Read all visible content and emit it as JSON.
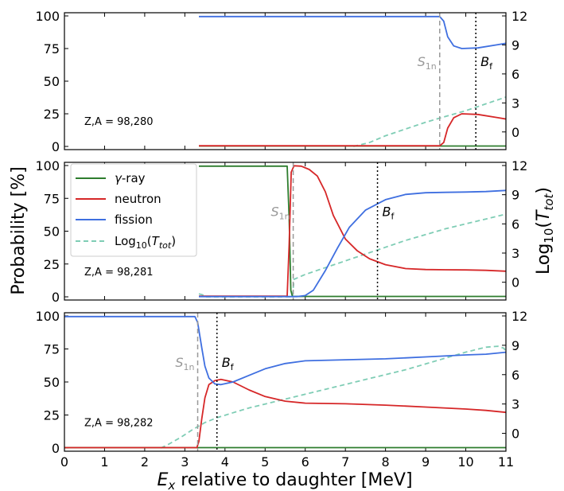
{
  "chart_data": {
    "type": "line",
    "xlabel": "E",
    "xlabel_sub": "x",
    "xlabel_rest": " relative to daughter [MeV]",
    "ylabel": "Probability [%]",
    "y2label": "Log",
    "y2label_sub": "10",
    "y2label_open": "(",
    "y2label_var": "T",
    "y2label_var_sub": "tot",
    "y2label_close": ")",
    "xlim": [
      0,
      11
    ],
    "ylim": [
      0,
      100
    ],
    "y2lim": [
      -1.5,
      12
    ],
    "xticks": [
      0,
      1,
      2,
      3,
      4,
      5,
      6,
      7,
      8,
      9,
      10,
      11
    ],
    "yticks": [
      0,
      25,
      50,
      75,
      100
    ],
    "y2ticks": [
      0,
      3,
      6,
      9,
      12
    ],
    "colors": {
      "gamma": "#2e7d2e",
      "neutron": "#d62728",
      "fission": "#3f6fe0",
      "log": "#7fcdb5",
      "s1n": "#999999",
      "bf": "#000000"
    },
    "legend": {
      "placement": "upper-left of middle panel",
      "entries": [
        {
          "key": "gamma",
          "label_symbol": "γ",
          "label_rest": "-ray"
        },
        {
          "key": "neutron",
          "label": "neutron"
        },
        {
          "key": "fission",
          "label": "fission"
        },
        {
          "key": "log",
          "label_pre": "Log",
          "label_sub": "10",
          "label_open": "(",
          "label_var": "T",
          "label_var_sub": "tot",
          "label_close": ")"
        }
      ]
    },
    "marker_labels": {
      "s1n_main": "S",
      "s1n_sub": "1n",
      "bf_main": "B",
      "bf_sub": "f"
    },
    "panels": [
      {
        "label": "Z,A = 98,280",
        "s1n": 9.35,
        "bf": 10.25,
        "s1n_label_pos": "left",
        "series": {
          "gamma": [
            [
              3.35,
              0.3
            ],
            [
              11,
              0.3
            ]
          ],
          "neutron": [
            [
              3.35,
              0.5
            ],
            [
              9.35,
              0.5
            ],
            [
              9.45,
              3
            ],
            [
              9.55,
              14
            ],
            [
              9.7,
              22
            ],
            [
              9.9,
              25
            ],
            [
              10.3,
              24.5
            ],
            [
              10.8,
              22
            ],
            [
              11,
              21
            ]
          ],
          "fission": [
            [
              3.35,
              99.5
            ],
            [
              9.35,
              99.5
            ],
            [
              9.45,
              96
            ],
            [
              9.55,
              84
            ],
            [
              9.7,
              77
            ],
            [
              9.9,
              75
            ],
            [
              10.3,
              75.5
            ],
            [
              10.8,
              78
            ],
            [
              11,
              79
            ]
          ],
          "log": [
            [
              7.2,
              -1.5
            ],
            [
              7.6,
              -1.1
            ],
            [
              8.0,
              -0.4
            ],
            [
              8.5,
              0.3
            ],
            [
              9.0,
              1.0
            ],
            [
              9.5,
              1.6
            ],
            [
              10.0,
              2.2
            ],
            [
              10.5,
              2.9
            ],
            [
              11,
              3.6
            ]
          ]
        }
      },
      {
        "label": "Z,A = 98,281",
        "s1n": 5.7,
        "bf": 7.8,
        "s1n_label_pos": "left",
        "series": {
          "gamma": [
            [
              3.35,
              99.5
            ],
            [
              5.55,
              99.5
            ],
            [
              5.6,
              60
            ],
            [
              5.64,
              5
            ],
            [
              5.68,
              0.3
            ],
            [
              11,
              0.3
            ]
          ],
          "neutron": [
            [
              3.35,
              0.5
            ],
            [
              5.55,
              0.5
            ],
            [
              5.6,
              40
            ],
            [
              5.65,
              95
            ],
            [
              5.72,
              99.8
            ],
            [
              5.9,
              99.5
            ],
            [
              6.1,
              97
            ],
            [
              6.3,
              92
            ],
            [
              6.5,
              80
            ],
            [
              6.7,
              62
            ],
            [
              7.0,
              44
            ],
            [
              7.3,
              35
            ],
            [
              7.6,
              29
            ],
            [
              8.0,
              24.5
            ],
            [
              8.5,
              21.5
            ],
            [
              9.0,
              20.8
            ],
            [
              9.5,
              20.6
            ],
            [
              10.0,
              20.5
            ],
            [
              10.5,
              20.2
            ],
            [
              11,
              19.5
            ]
          ],
          "fission": [
            [
              3.35,
              0.2
            ],
            [
              5.8,
              0.2
            ],
            [
              6.0,
              1
            ],
            [
              6.2,
              5
            ],
            [
              6.5,
              20
            ],
            [
              6.8,
              37
            ],
            [
              7.1,
              53
            ],
            [
              7.5,
              66
            ],
            [
              8.0,
              74
            ],
            [
              8.5,
              78
            ],
            [
              9.0,
              79.3
            ],
            [
              9.5,
              79.6
            ],
            [
              10.0,
              79.8
            ],
            [
              10.5,
              80.2
            ],
            [
              11,
              81
            ]
          ],
          "log": [
            [
              3.35,
              -1.2
            ],
            [
              3.45,
              -1.3
            ],
            [
              3.5,
              -1.5
            ],
            [
              5.68,
              -1.5
            ],
            [
              5.72,
              0.3
            ],
            [
              6.0,
              0.8
            ],
            [
              6.5,
              1.5
            ],
            [
              7.0,
              2.2
            ],
            [
              7.5,
              2.9
            ],
            [
              8.0,
              3.6
            ],
            [
              8.5,
              4.3
            ],
            [
              9.0,
              4.9
            ],
            [
              9.5,
              5.5
            ],
            [
              10.0,
              6.0
            ],
            [
              10.5,
              6.5
            ],
            [
              11,
              7.0
            ]
          ]
        }
      },
      {
        "label": "Z,A = 98,282",
        "s1n": 3.32,
        "bf": 3.8,
        "s1n_label_pos": "left",
        "series": {
          "gamma": [
            [
              0,
              0.3
            ],
            [
              11,
              0.3
            ]
          ],
          "neutron": [
            [
              0,
              0.3
            ],
            [
              3.3,
              0.3
            ],
            [
              3.35,
              5
            ],
            [
              3.42,
              22
            ],
            [
              3.5,
              38
            ],
            [
              3.6,
              48
            ],
            [
              3.75,
              51
            ],
            [
              3.9,
              52
            ],
            [
              4.2,
              50
            ],
            [
              4.6,
              44
            ],
            [
              5.0,
              39
            ],
            [
              5.5,
              35.5
            ],
            [
              6.0,
              34
            ],
            [
              7.0,
              33.5
            ],
            [
              8.0,
              32.5
            ],
            [
              9.0,
              31
            ],
            [
              10.0,
              29.5
            ],
            [
              10.5,
              28.5
            ],
            [
              11,
              27
            ]
          ],
          "fission": [
            [
              0,
              99.5
            ],
            [
              3.25,
              99.5
            ],
            [
              3.32,
              95
            ],
            [
              3.42,
              76
            ],
            [
              3.5,
              62
            ],
            [
              3.6,
              53
            ],
            [
              3.75,
              48.5
            ],
            [
              3.9,
              48
            ],
            [
              4.2,
              50
            ],
            [
              4.6,
              55
            ],
            [
              5.0,
              60
            ],
            [
              5.5,
              64
            ],
            [
              6.0,
              66
            ],
            [
              7.0,
              66.8
            ],
            [
              8.0,
              67.5
            ],
            [
              9.0,
              69
            ],
            [
              10.0,
              70.5
            ],
            [
              10.5,
              71
            ],
            [
              11,
              72.5
            ]
          ],
          "log": [
            [
              2.4,
              -1.5
            ],
            [
              2.6,
              -1.1
            ],
            [
              2.9,
              -0.4
            ],
            [
              3.2,
              0.4
            ],
            [
              3.5,
              1.1
            ],
            [
              3.8,
              1.6
            ],
            [
              4.2,
              2.1
            ],
            [
              4.6,
              2.6
            ],
            [
              5.0,
              3.0
            ],
            [
              5.5,
              3.5
            ],
            [
              6.0,
              4.0
            ],
            [
              6.5,
              4.5
            ],
            [
              7.0,
              5.0
            ],
            [
              7.5,
              5.5
            ],
            [
              8.0,
              6.0
            ],
            [
              8.5,
              6.5
            ],
            [
              9.0,
              7.1
            ],
            [
              9.5,
              7.7
            ],
            [
              10.0,
              8.3
            ],
            [
              10.5,
              8.8
            ],
            [
              10.8,
              8.9
            ],
            [
              10.95,
              8.7
            ],
            [
              11,
              8.3
            ]
          ]
        }
      }
    ]
  }
}
